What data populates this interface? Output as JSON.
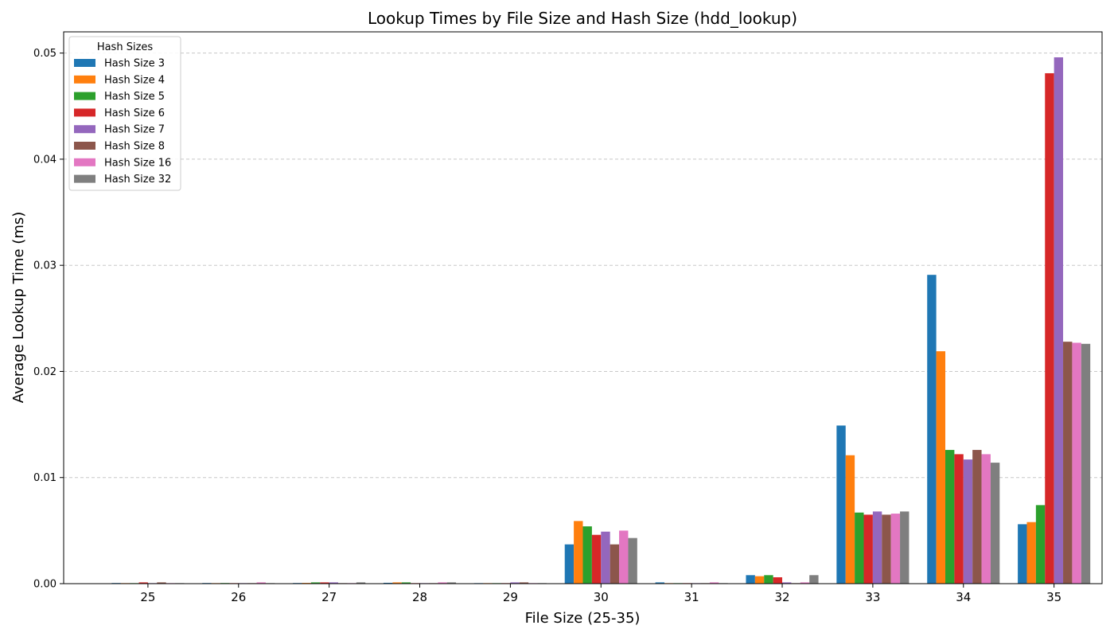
{
  "chart_data": {
    "type": "bar",
    "title": "Lookup Times by File Size and Hash Size (hdd_lookup)",
    "xlabel": "File Size (25-35)",
    "ylabel": "Average Lookup Time (ms)",
    "categories": [
      "25",
      "26",
      "27",
      "28",
      "29",
      "30",
      "31",
      "32",
      "33",
      "34",
      "35"
    ],
    "ylim": [
      0,
      0.052
    ],
    "yticks": [
      0.0,
      0.01,
      0.02,
      0.03,
      0.04,
      0.05
    ],
    "ytick_labels": [
      "0.00",
      "0.01",
      "0.02",
      "0.03",
      "0.04",
      "0.05"
    ],
    "grid": "y-dashed",
    "legend": {
      "title": "Hash Sizes",
      "placement": "top-left"
    },
    "series": [
      {
        "name": "Hash Size 3",
        "color": "#1f77b4",
        "values": [
          6e-05,
          6e-05,
          6e-05,
          8e-05,
          5e-05,
          0.0037,
          0.00012,
          0.0008,
          0.0149,
          0.0291,
          0.0056
        ]
      },
      {
        "name": "Hash Size 4",
        "color": "#ff7f0e",
        "values": [
          5e-05,
          5e-05,
          7e-05,
          0.00012,
          5e-05,
          0.0059,
          5e-05,
          0.0007,
          0.0121,
          0.0219,
          0.0058
        ]
      },
      {
        "name": "Hash Size 5",
        "color": "#2ca02c",
        "values": [
          5e-05,
          6e-05,
          0.00012,
          0.00012,
          5e-05,
          0.0054,
          5e-05,
          0.0008,
          0.0067,
          0.0126,
          0.0074
        ]
      },
      {
        "name": "Hash Size 6",
        "color": "#d62728",
        "values": [
          0.00012,
          5e-05,
          0.00012,
          5e-05,
          5e-05,
          0.0046,
          5e-05,
          0.0006,
          0.0065,
          0.0122,
          0.0481
        ]
      },
      {
        "name": "Hash Size 7",
        "color": "#9467bd",
        "values": [
          5e-05,
          5e-05,
          0.00012,
          5e-05,
          0.00012,
          0.0049,
          5e-05,
          0.00012,
          0.0068,
          0.0117,
          0.0496
        ]
      },
      {
        "name": "Hash Size 8",
        "color": "#8c564b",
        "values": [
          0.00012,
          5e-05,
          5e-05,
          5e-05,
          0.00012,
          0.0037,
          5e-05,
          5e-05,
          0.0065,
          0.0126,
          0.0228
        ]
      },
      {
        "name": "Hash Size 16",
        "color": "#e377c2",
        "values": [
          5e-05,
          0.00012,
          5e-05,
          0.00012,
          5e-05,
          0.005,
          0.00012,
          0.00012,
          0.0066,
          0.0122,
          0.0227
        ]
      },
      {
        "name": "Hash Size 32",
        "color": "#7f7f7f",
        "values": [
          5e-05,
          5e-05,
          0.00012,
          0.00012,
          5e-05,
          0.0043,
          5e-05,
          0.0008,
          0.0068,
          0.0114,
          0.0226
        ]
      }
    ]
  }
}
